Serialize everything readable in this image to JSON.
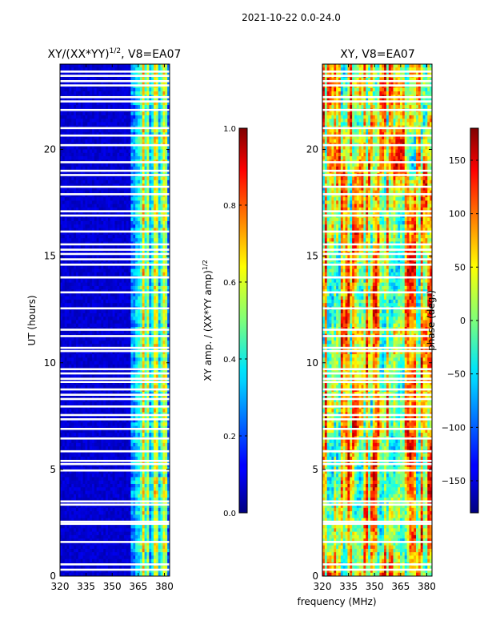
{
  "figure": {
    "suptitle": "2021-10-22 0.0-24.0",
    "xlabel": "frequency (MHz)"
  },
  "chart_data": [
    {
      "type": "heatmap",
      "title_main": "XY/(XX*YY)",
      "title_sup": "1/2",
      "title_tail": ", V8=EA07",
      "ylabel": "UT (hours)",
      "xlim": [
        320,
        383
      ],
      "ylim": [
        0,
        24
      ],
      "xticks": [
        320,
        335,
        350,
        365,
        380
      ],
      "yticks": [
        0,
        5,
        10,
        15,
        20
      ],
      "colorbar": {
        "label_main": "XY amp. / (XX*YY amp)",
        "label_sup": "1/2",
        "range": [
          0.0,
          1.0
        ],
        "ticks": [
          "0.0",
          "0.2",
          "0.4",
          "0.6",
          "0.8",
          "1.0"
        ],
        "tick_values": [
          0.0,
          0.2,
          0.4,
          0.6,
          0.8,
          1.0
        ],
        "colormap": "jet"
      },
      "description_values": {
        "low_band_mean": 0.05,
        "high_band_range": [
          0.1,
          0.75
        ],
        "high_band_start_mhz": 361
      }
    },
    {
      "type": "heatmap",
      "title_main": "XY, V8=EA07",
      "ylabel": "",
      "xlim": [
        320,
        383
      ],
      "ylim": [
        0,
        24
      ],
      "xticks": [
        320,
        335,
        350,
        365,
        380
      ],
      "yticks": [
        0,
        5,
        10,
        15,
        20
      ],
      "colorbar": {
        "label_main": "phase (deg.)",
        "range": [
          -180,
          180
        ],
        "ticks": [
          "−150",
          "−100",
          "−50",
          "0",
          "50",
          "100",
          "150"
        ],
        "tick_values": [
          -150,
          -100,
          -50,
          0,
          50,
          100,
          150
        ],
        "colormap": "jet"
      }
    }
  ],
  "gap_rows_hours": [
    0.3,
    0.55,
    1.6,
    2.45,
    2.55,
    3.35,
    3.5,
    4.95,
    5.25,
    5.4,
    5.85,
    6.45,
    6.9,
    7.35,
    7.55,
    7.95,
    8.3,
    8.5,
    8.75,
    9.1,
    9.25,
    9.5,
    9.7,
    10.55,
    10.7,
    11.25,
    11.55,
    12.55,
    13.3,
    14.0,
    14.6,
    14.85,
    15.1,
    15.3,
    15.55,
    16.15,
    16.9,
    17.1,
    17.9,
    18.25,
    18.8,
    19.0,
    19.4,
    20.2,
    20.65,
    21.0,
    21.85,
    22.25,
    22.45,
    23.0,
    23.2,
    23.45,
    23.65
  ]
}
